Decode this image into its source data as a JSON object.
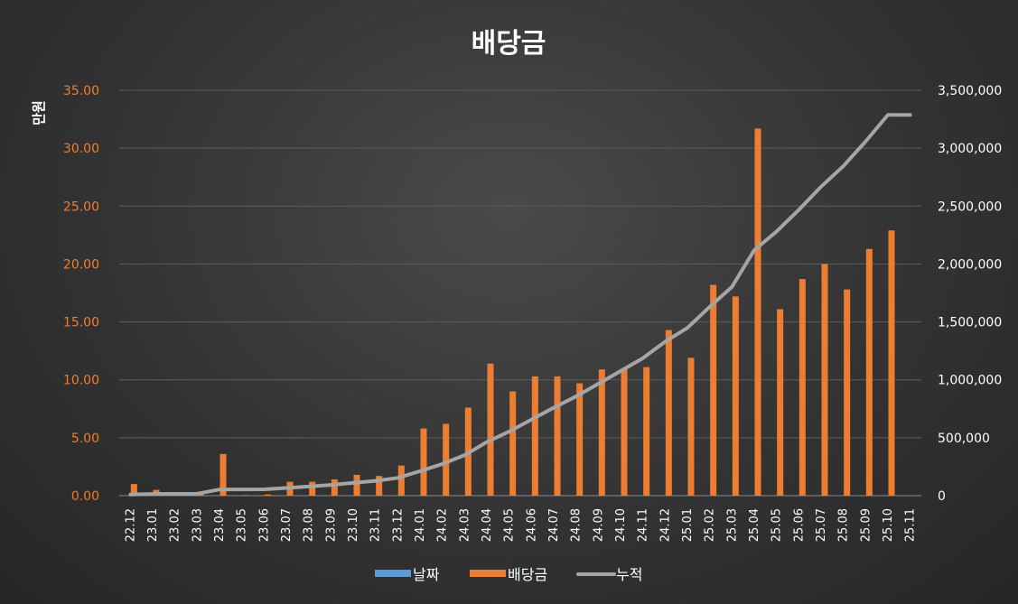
{
  "chart_data": {
    "type": "bar+line",
    "title": "배당금",
    "ylabel_left": "만원",
    "categories": [
      "22.12",
      "23.01",
      "23.02",
      "23.03",
      "23.04",
      "23.05",
      "23.06",
      "23.07",
      "23.08",
      "23.09",
      "23.10",
      "23.11",
      "23.12",
      "24.01",
      "24.02",
      "24.03",
      "24.04",
      "24.05",
      "24.06",
      "24.07",
      "24.08",
      "24.09",
      "24.10",
      "24.11",
      "24.12",
      "25.01",
      "25.02",
      "25.03",
      "25.04",
      "25.05",
      "25.06",
      "25.07",
      "25.08",
      "25.09",
      "25.10",
      "25.11"
    ],
    "left_axis": {
      "min": 0,
      "max": 35,
      "step": 5,
      "tick_labels": [
        "0.00",
        "5.00",
        "10.00",
        "15.00",
        "20.00",
        "25.00",
        "30.00",
        "35.00"
      ]
    },
    "right_axis": {
      "min": 0,
      "max": 3500000,
      "step": 500000,
      "tick_labels": [
        "0",
        "500,000",
        "1,000,000",
        "1,500,000",
        "2,000,000",
        "2,500,000",
        "3,000,000",
        "3,500,000"
      ]
    },
    "series": [
      {
        "name": "날짜",
        "type": "bar",
        "axis": "left",
        "color": "#5b9bd5",
        "values": [
          0,
          0,
          0,
          0,
          0,
          0,
          0,
          0,
          0,
          0,
          0,
          0,
          0,
          0,
          0,
          0,
          0,
          0,
          0,
          0,
          0,
          0,
          0,
          0,
          0,
          0,
          0,
          0,
          0,
          0,
          0,
          0,
          0,
          0,
          0,
          0
        ]
      },
      {
        "name": "배당금",
        "type": "bar",
        "axis": "left",
        "color": "#ed7d31",
        "values": [
          1.0,
          0.5,
          0.1,
          0.1,
          3.6,
          0.05,
          0.1,
          1.2,
          1.2,
          1.4,
          1.8,
          1.7,
          2.6,
          5.8,
          6.2,
          7.6,
          11.4,
          9.0,
          10.3,
          10.3,
          9.7,
          10.9,
          11.0,
          11.1,
          14.3,
          11.9,
          18.2,
          17.2,
          31.7,
          16.1,
          18.7,
          20.0,
          17.8,
          21.3,
          22.9,
          0.0
        ]
      },
      {
        "name": "누적",
        "type": "line",
        "axis": "right",
        "color": "#a5a5a5",
        "values": [
          10000,
          15000,
          16000,
          17000,
          53000,
          53500,
          54500,
          66500,
          78500,
          92500,
          110500,
          127500,
          153500,
          211500,
          273500,
          349500,
          463500,
          553500,
          656500,
          759500,
          856500,
          965500,
          1075500,
          1186500,
          1329500,
          1448500,
          1630500,
          1802500,
          2119500,
          2280500,
          2467500,
          2667500,
          2845500,
          3058500,
          3287500,
          3287500
        ]
      }
    ],
    "legend_position": "bottom",
    "grid": true
  }
}
